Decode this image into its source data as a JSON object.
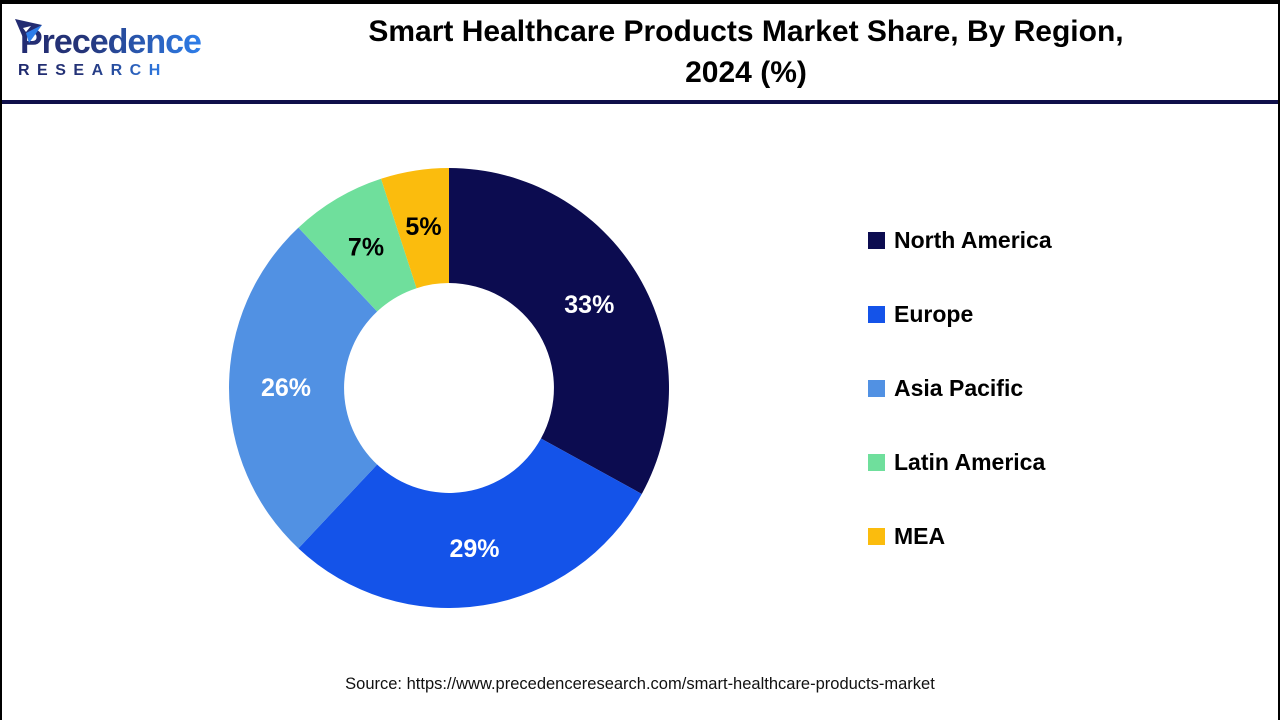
{
  "header": {
    "logo_brand": "Precedence",
    "logo_sub": "RESEARCH",
    "title_line1": "Smart Healthcare Products Market Share, By Region,",
    "title_line2": "2024 (%)"
  },
  "chart_data": {
    "type": "pie",
    "subtype": "donut",
    "title": "Smart Healthcare Products Market Share, By Region, 2024 (%)",
    "categories": [
      "North America",
      "Europe",
      "Asia Pacific",
      "Latin America",
      "MEA"
    ],
    "values": [
      33,
      29,
      26,
      7,
      5
    ],
    "data_labels": [
      "33%",
      "29%",
      "26%",
      "7%",
      "5%"
    ],
    "colors": [
      "#0c0c50",
      "#1453e9",
      "#5191e3",
      "#6fdf9c",
      "#fbbc0d"
    ],
    "data_label_colors": [
      "#ffffff",
      "#ffffff",
      "#ffffff",
      "#000000",
      "#000000"
    ],
    "start_angle_deg": 0,
    "direction": "clockwise",
    "inner_radius_ratio": 0.477,
    "legend_position": "right",
    "grid": false
  },
  "footer": {
    "source": "Source: https://www.precedenceresearch.com/smart-healthcare-products-market"
  }
}
